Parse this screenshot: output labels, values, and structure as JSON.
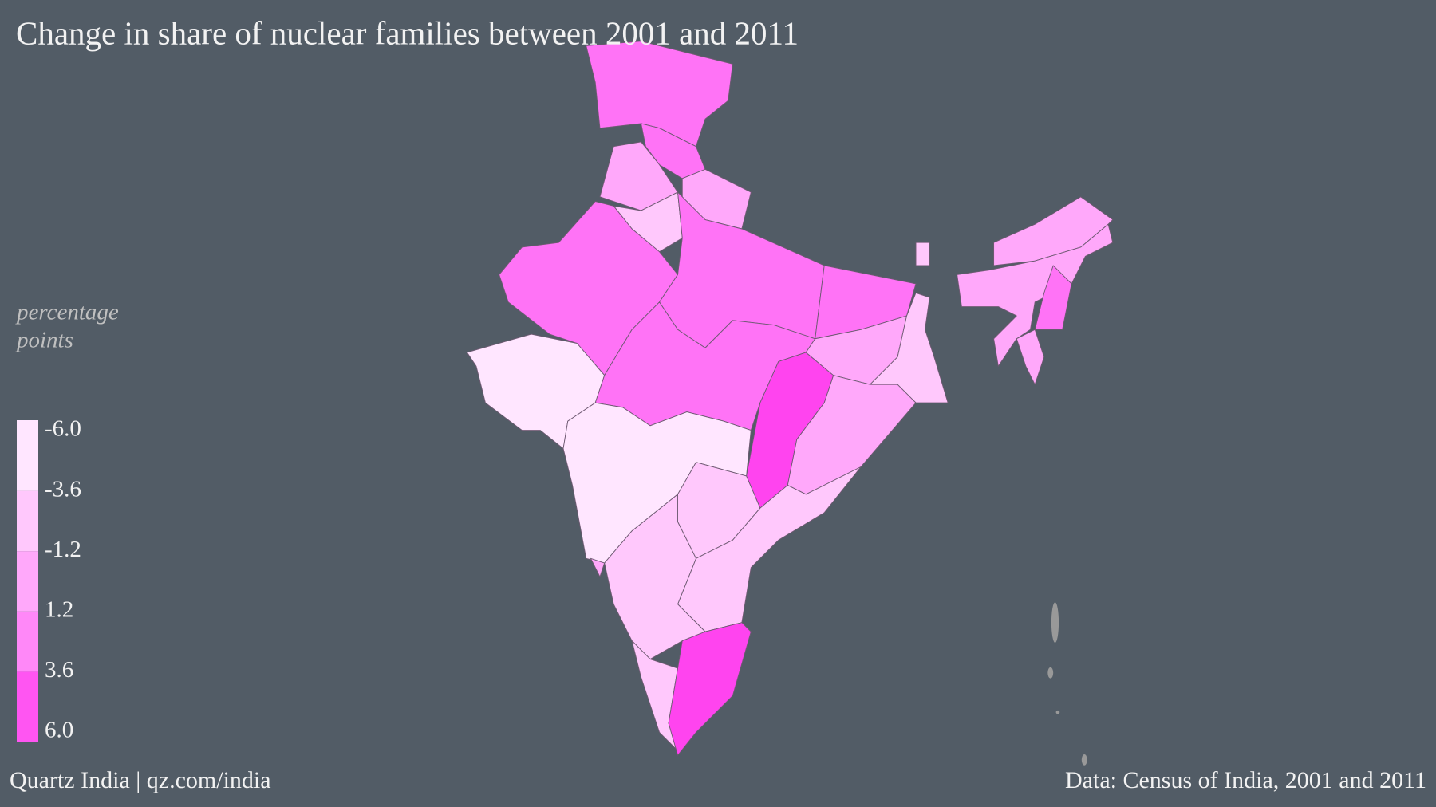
{
  "title": "Change in share of nuclear families between 2001 and 2011",
  "legend": {
    "title_lines": [
      "percentage",
      "points"
    ],
    "colors": [
      "#ffe6ff",
      "#ffc8fc",
      "#ffa8fa",
      "#ff88f8",
      "#ff55f2"
    ],
    "scale": [
      -6,
      6
    ],
    "ticks": [
      {
        "value": -6,
        "label": "-6.0"
      },
      {
        "value": -3.6,
        "label": "-3.6"
      },
      {
        "value": -1.2,
        "label": "-1.2"
      },
      {
        "value": 1.2,
        "label": "1.2"
      },
      {
        "value": 3.6,
        "label": "3.6"
      },
      {
        "value": 6,
        "label": "6.0"
      }
    ]
  },
  "footer": {
    "left": "Quartz India | qz.com/india",
    "right": "Data: Census of India, 2001 and 2011"
  }
}
